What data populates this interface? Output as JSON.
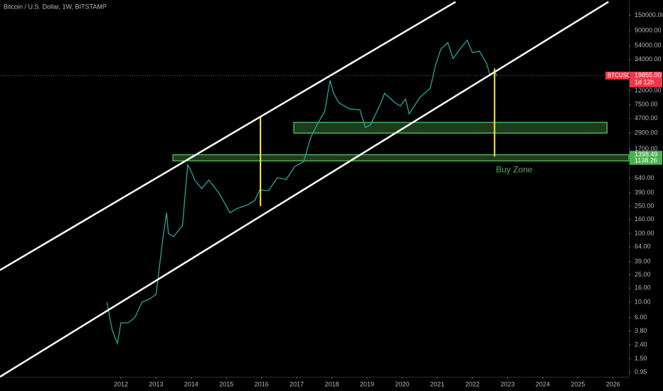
{
  "chart_data": {
    "type": "line",
    "title": "Bitcoin / U.S. Dollar, 1W, BITSTAMP",
    "log_scale": true,
    "xlim": [
      2008.56,
      2026.45
    ],
    "xticks": [
      2012,
      2013,
      2014,
      2015,
      2016,
      2017,
      2018,
      2019,
      2020,
      2021,
      2022,
      2023,
      2024,
      2025,
      2026
    ],
    "ylim": [
      0.82,
      250000
    ],
    "yticks": [
      {
        "value": 150000,
        "label": "150000.00"
      },
      {
        "value": 90000,
        "label": "90000.00"
      },
      {
        "value": 54000,
        "label": "54000.00"
      },
      {
        "value": 34000,
        "label": "34000.00"
      },
      {
        "value": 12000,
        "label": "12000.00"
      },
      {
        "value": 7500,
        "label": "7500.00"
      },
      {
        "value": 4700,
        "label": "4700.00"
      },
      {
        "value": 2900,
        "label": "2900.00"
      },
      {
        "value": 1700,
        "label": "1700.00"
      },
      {
        "value": 640,
        "label": "640.00"
      },
      {
        "value": 390,
        "label": "390.00"
      },
      {
        "value": 250,
        "label": "250.00"
      },
      {
        "value": 160,
        "label": "160.00"
      },
      {
        "value": 100,
        "label": "100.00"
      },
      {
        "value": 64,
        "label": "64.00"
      },
      {
        "value": 39,
        "label": "39.00"
      },
      {
        "value": 25,
        "label": "25.00"
      },
      {
        "value": 16,
        "label": "16.00"
      },
      {
        "value": 10,
        "label": "10.00"
      },
      {
        "value": 6,
        "label": "6.00"
      },
      {
        "value": 3.8,
        "label": "3.80"
      },
      {
        "value": 2.4,
        "label": "2.40"
      },
      {
        "value": 1.5,
        "label": "1.50"
      },
      {
        "value": 0.95,
        "label": "0.95"
      }
    ],
    "series": [
      {
        "name": "BTCUSD",
        "color": "#26a69a",
        "x": [
          2011.6,
          2011.75,
          2011.9,
          2012.0,
          2012.2,
          2012.4,
          2012.6,
          2012.8,
          2013.0,
          2013.2,
          2013.3,
          2013.35,
          2013.5,
          2013.75,
          2013.9,
          2014.0,
          2014.1,
          2014.3,
          2014.5,
          2014.8,
          2015.0,
          2015.1,
          2015.3,
          2015.6,
          2015.8,
          2015.95,
          2016.2,
          2016.45,
          2016.7,
          2016.95,
          2017.2,
          2017.4,
          2017.6,
          2017.8,
          2017.95,
          2018.05,
          2018.2,
          2018.5,
          2018.8,
          2018.95,
          2019.1,
          2019.4,
          2019.5,
          2019.8,
          2019.95,
          2020.1,
          2020.2,
          2020.5,
          2020.8,
          2020.95,
          2021.1,
          2021.3,
          2021.45,
          2021.6,
          2021.85,
          2022.0,
          2022.2,
          2022.4,
          2022.5,
          2022.62,
          2022.7
        ],
        "values": [
          10,
          4,
          2.5,
          5,
          5,
          6,
          10,
          11,
          13,
          90,
          200,
          100,
          90,
          130,
          1000,
          800,
          600,
          450,
          600,
          380,
          250,
          200,
          230,
          260,
          300,
          430,
          420,
          650,
          610,
          950,
          1100,
          2500,
          4000,
          6000,
          17000,
          11000,
          8000,
          6500,
          6300,
          3500,
          3800,
          8000,
          11000,
          8000,
          7200,
          9000,
          5500,
          9500,
          13000,
          28000,
          48000,
          60000,
          35000,
          45000,
          65000,
          43000,
          45000,
          30000,
          20000,
          23000,
          19855
        ]
      }
    ],
    "last_price": {
      "value": 19855,
      "label": "19855.00"
    },
    "symbol": "BTCUSD",
    "countdown": "1d 12h",
    "trendlines": [
      {
        "x": [
          2008.56,
          2021.52
        ],
        "y": [
          29.3,
          235000
        ]
      },
      {
        "x": [
          2008.56,
          2025.87
        ],
        "y": [
          0.82,
          235000
        ]
      }
    ],
    "zones": [
      {
        "x": [
          2016.92,
          2025.83
        ],
        "y": [
          4130,
          2890
        ]
      },
      {
        "x": [
          2013.48,
          2026.45
        ],
        "y": [
          1398.49,
          1138.26
        ]
      }
    ],
    "verticals": [
      {
        "x": 2015.97,
        "y": [
          5120,
          250
        ]
      },
      {
        "x": 2022.63,
        "y": [
          25200,
          1320
        ]
      }
    ],
    "annotation": "Buy Zone"
  }
}
